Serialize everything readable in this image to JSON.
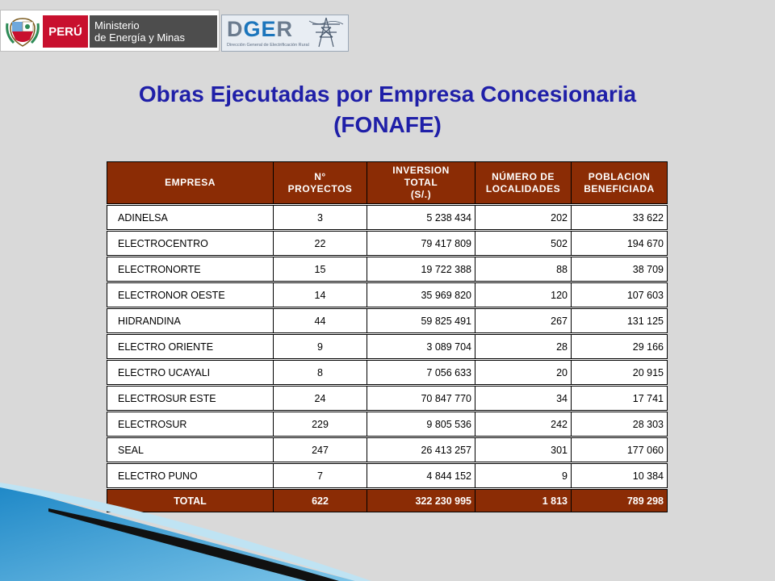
{
  "header": {
    "peru_label": "PERÚ",
    "ministerio_line1": "Ministerio",
    "ministerio_line2": "de Energía y Minas",
    "dger_d": "D",
    "dger_g": "G",
    "dger_e": "E",
    "dger_r": "R",
    "dger_subtitle": "Dirección General de Electrificación Rural"
  },
  "title": {
    "line1": "Obras Ejecutadas por Empresa Concesionaria",
    "line2": "(FONAFE)"
  },
  "table": {
    "headers": {
      "empresa": "EMPRESA",
      "proyectos_1": "N°",
      "proyectos_2": "PROYECTOS",
      "inversion_1": "INVERSION",
      "inversion_2": "TOTAL",
      "inversion_3": "(S/.)",
      "localidades_1": "NÚMERO DE",
      "localidades_2": "LOCALIDADES",
      "poblacion_1": "POBLACION",
      "poblacion_2": "BENEFICIADA"
    },
    "rows": [
      {
        "empresa": "ADINELSA",
        "proyectos": "3",
        "inversion": "5 238 434",
        "localidades": "202",
        "poblacion": "33 622"
      },
      {
        "empresa": "ELECTROCENTRO",
        "proyectos": "22",
        "inversion": "79 417 809",
        "localidades": "502",
        "poblacion": "194 670"
      },
      {
        "empresa": "ELECTRONORTE",
        "proyectos": "15",
        "inversion": "19 722 388",
        "localidades": "88",
        "poblacion": "38 709"
      },
      {
        "empresa": "ELECTRONOR OESTE",
        "proyectos": "14",
        "inversion": "35 969 820",
        "localidades": "120",
        "poblacion": "107 603"
      },
      {
        "empresa": "HIDRANDINA",
        "proyectos": "44",
        "inversion": "59 825 491",
        "localidades": "267",
        "poblacion": "131 125"
      },
      {
        "empresa": "ELECTRO ORIENTE",
        "proyectos": "9",
        "inversion": "3 089 704",
        "localidades": "28",
        "poblacion": "29 166"
      },
      {
        "empresa": "ELECTRO UCAYALI",
        "proyectos": "8",
        "inversion": "7 056 633",
        "localidades": "20",
        "poblacion": "20 915"
      },
      {
        "empresa": "ELECTROSUR ESTE",
        "proyectos": "24",
        "inversion": "70 847 770",
        "localidades": "34",
        "poblacion": "17 741"
      },
      {
        "empresa": "ELECTROSUR",
        "proyectos": "229",
        "inversion": "9 805 536",
        "localidades": "242",
        "poblacion": "28 303"
      },
      {
        "empresa": "SEAL",
        "proyectos": "247",
        "inversion": "26 413 257",
        "localidades": "301",
        "poblacion": "177 060"
      },
      {
        "empresa": "ELECTRO PUNO",
        "proyectos": "7",
        "inversion": "4 844 152",
        "localidades": "9",
        "poblacion": "10 384"
      }
    ],
    "total": {
      "empresa": "TOTAL",
      "proyectos": "622",
      "inversion": "322 230 995",
      "localidades": "1 813",
      "poblacion": "789 298"
    }
  },
  "colors": {
    "title": "#1f1fa8",
    "header_bg": "#8b2c05",
    "background": "#d9d9d9"
  }
}
